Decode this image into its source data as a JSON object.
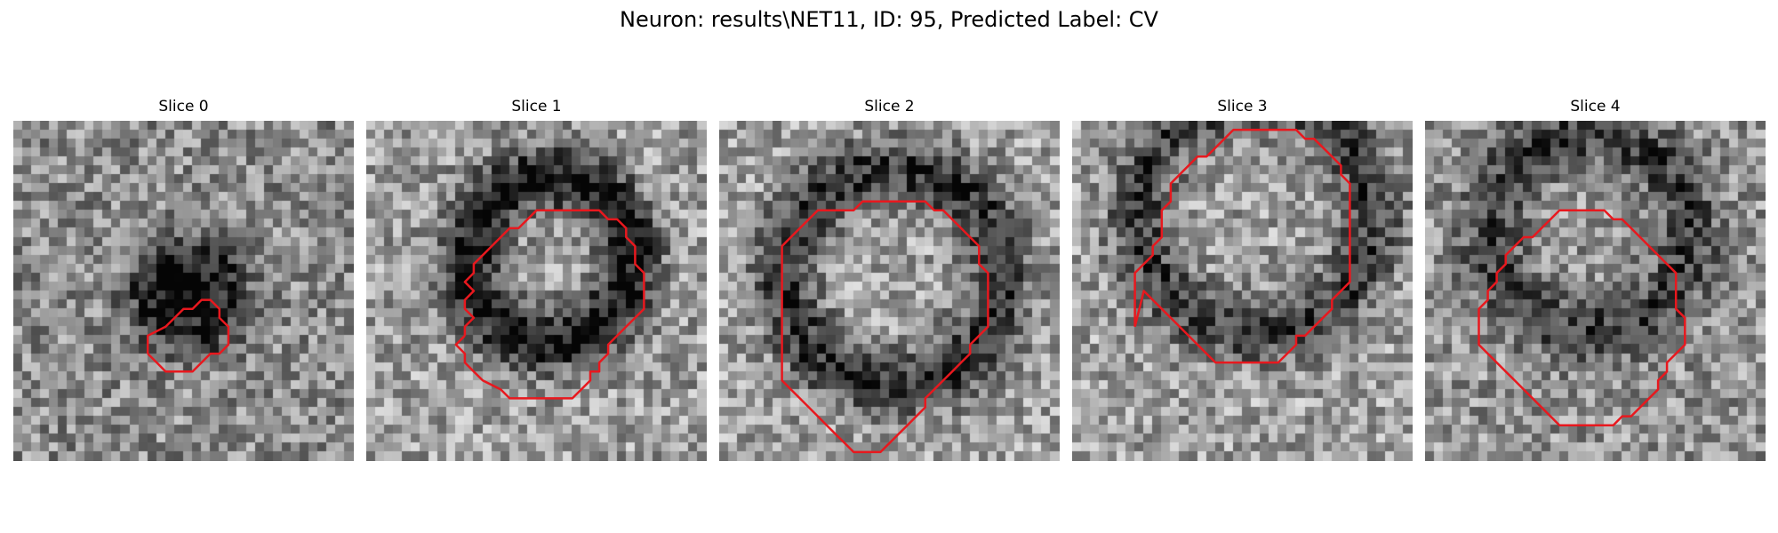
{
  "figure": {
    "title": "Neuron: results\\NET11, ID: 95, Predicted Label: CV"
  },
  "colors": {
    "contour": "#e8181e",
    "background": "#ffffff"
  },
  "panels": [
    {
      "title": "Slice 0",
      "contour": [
        [
          15,
          20
        ],
        [
          15,
          18
        ],
        [
          17,
          17
        ],
        [
          18,
          16
        ],
        [
          19,
          15
        ],
        [
          20,
          15
        ],
        [
          21,
          14
        ],
        [
          22,
          14
        ],
        [
          23,
          15
        ],
        [
          23,
          16
        ],
        [
          24,
          17
        ],
        [
          24,
          19
        ],
        [
          23,
          20
        ],
        [
          22,
          20
        ],
        [
          21,
          21
        ],
        [
          20,
          22
        ],
        [
          18,
          22
        ],
        [
          17,
          22
        ],
        [
          16,
          21
        ],
        [
          15,
          20
        ]
      ]
    },
    {
      "title": "Slice 1",
      "contour": [
        [
          11,
          18
        ],
        [
          11,
          17
        ],
        [
          12,
          16
        ],
        [
          11,
          15
        ],
        [
          11,
          14
        ],
        [
          12,
          13
        ],
        [
          11,
          12
        ],
        [
          12,
          11
        ],
        [
          12,
          10
        ],
        [
          13,
          9
        ],
        [
          14,
          8
        ],
        [
          15,
          7
        ],
        [
          16,
          6
        ],
        [
          17,
          6
        ],
        [
          18,
          5
        ],
        [
          19,
          4
        ],
        [
          20,
          4
        ],
        [
          22,
          4
        ],
        [
          23,
          4
        ],
        [
          24,
          4
        ],
        [
          25,
          4
        ],
        [
          26,
          4
        ],
        [
          27,
          5
        ],
        [
          28,
          5
        ],
        [
          29,
          6
        ],
        [
          29,
          7
        ],
        [
          30,
          8
        ],
        [
          30,
          10
        ],
        [
          31,
          11
        ],
        [
          31,
          13
        ],
        [
          31,
          15
        ],
        [
          30,
          16
        ],
        [
          29,
          17
        ],
        [
          28,
          18
        ],
        [
          27,
          19
        ],
        [
          27,
          20
        ],
        [
          26,
          21
        ],
        [
          26,
          22
        ],
        [
          25,
          22
        ],
        [
          25,
          23
        ],
        [
          24,
          24
        ],
        [
          23,
          25
        ],
        [
          21,
          25
        ],
        [
          20,
          25
        ],
        [
          18,
          25
        ],
        [
          17,
          25
        ],
        [
          16,
          25
        ],
        [
          15,
          24
        ],
        [
          13,
          23
        ],
        [
          12,
          22
        ],
        [
          11,
          21
        ],
        [
          11,
          20
        ],
        [
          10,
          19
        ],
        [
          11,
          18
        ]
      ]
    },
    {
      "title": "Slice 2",
      "contour": [
        [
          7,
          16
        ],
        [
          7,
          14
        ],
        [
          7,
          12
        ],
        [
          7,
          10
        ],
        [
          7,
          8
        ],
        [
          8,
          7
        ],
        [
          9,
          6
        ],
        [
          10,
          5
        ],
        [
          11,
          4
        ],
        [
          13,
          4
        ],
        [
          15,
          4
        ],
        [
          16,
          3
        ],
        [
          18,
          3
        ],
        [
          20,
          3
        ],
        [
          22,
          3
        ],
        [
          23,
          3
        ],
        [
          24,
          4
        ],
        [
          25,
          4
        ],
        [
          26,
          5
        ],
        [
          27,
          6
        ],
        [
          28,
          7
        ],
        [
          29,
          8
        ],
        [
          29,
          10
        ],
        [
          30,
          11
        ],
        [
          30,
          13
        ],
        [
          30,
          15
        ],
        [
          30,
          17
        ],
        [
          29,
          18
        ],
        [
          28,
          19
        ],
        [
          28,
          20
        ],
        [
          27,
          21
        ],
        [
          26,
          22
        ],
        [
          25,
          23
        ],
        [
          24,
          24
        ],
        [
          23,
          25
        ],
        [
          23,
          26
        ],
        [
          22,
          27
        ],
        [
          21,
          28
        ],
        [
          20,
          29
        ],
        [
          19,
          30
        ],
        [
          18,
          31
        ],
        [
          16,
          31
        ],
        [
          15,
          31
        ],
        [
          14,
          30
        ],
        [
          13,
          29
        ],
        [
          12,
          28
        ],
        [
          11,
          27
        ],
        [
          10,
          26
        ],
        [
          9,
          25
        ],
        [
          8,
          24
        ],
        [
          7,
          23
        ],
        [
          7,
          21
        ],
        [
          7,
          19
        ],
        [
          7,
          16
        ]
      ]
    },
    {
      "title": "Slice 3",
      "contour": [
        [
          7,
          19
        ],
        [
          7,
          17
        ],
        [
          7,
          15
        ],
        [
          7,
          13
        ],
        [
          8,
          12
        ],
        [
          9,
          11
        ],
        [
          9,
          10
        ],
        [
          10,
          9
        ],
        [
          10,
          8
        ],
        [
          10,
          6
        ],
        [
          11,
          5
        ],
        [
          11,
          3
        ],
        [
          12,
          2
        ],
        [
          13,
          1
        ],
        [
          14,
          0
        ],
        [
          15,
          0
        ],
        [
          16,
          -1
        ],
        [
          17,
          -2
        ],
        [
          18,
          -3
        ],
        [
          19,
          -3
        ],
        [
          20,
          -3
        ],
        [
          22,
          -3
        ],
        [
          23,
          -3
        ],
        [
          24,
          -3
        ],
        [
          25,
          -3
        ],
        [
          26,
          -2
        ],
        [
          27,
          -2
        ],
        [
          28,
          -1
        ],
        [
          29,
          0
        ],
        [
          30,
          1
        ],
        [
          30,
          2
        ],
        [
          31,
          3
        ],
        [
          31,
          4
        ],
        [
          31,
          6
        ],
        [
          31,
          8
        ],
        [
          31,
          10
        ],
        [
          31,
          12
        ],
        [
          31,
          14
        ],
        [
          30,
          15
        ],
        [
          29,
          16
        ],
        [
          29,
          17
        ],
        [
          28,
          18
        ],
        [
          27,
          19
        ],
        [
          26,
          20
        ],
        [
          25,
          20
        ],
        [
          25,
          21
        ],
        [
          24,
          22
        ],
        [
          23,
          23
        ],
        [
          22,
          23
        ],
        [
          20,
          23
        ],
        [
          18,
          23
        ],
        [
          17,
          23
        ],
        [
          16,
          23
        ],
        [
          15,
          22
        ],
        [
          14,
          21
        ],
        [
          13,
          20
        ],
        [
          12,
          19
        ],
        [
          11,
          18
        ],
        [
          10,
          17
        ],
        [
          9,
          16
        ],
        [
          8,
          15
        ],
        [
          7,
          19
        ]
      ]
    },
    {
      "title": "Slice 4",
      "contour": [
        [
          6,
          14
        ],
        [
          6,
          12
        ],
        [
          6,
          11
        ],
        [
          7,
          10
        ],
        [
          7,
          9
        ],
        [
          8,
          8
        ],
        [
          8,
          7
        ],
        [
          9,
          6
        ],
        [
          9,
          5
        ],
        [
          10,
          4
        ],
        [
          11,
          3
        ],
        [
          12,
          3
        ],
        [
          13,
          2
        ],
        [
          14,
          1
        ],
        [
          15,
          0
        ],
        [
          16,
          0
        ],
        [
          18,
          0
        ],
        [
          19,
          0
        ],
        [
          20,
          0
        ],
        [
          21,
          1
        ],
        [
          22,
          1
        ],
        [
          23,
          2
        ],
        [
          24,
          3
        ],
        [
          25,
          4
        ],
        [
          26,
          5
        ],
        [
          27,
          6
        ],
        [
          28,
          7
        ],
        [
          28,
          8
        ],
        [
          28,
          10
        ],
        [
          28,
          11
        ],
        [
          29,
          12
        ],
        [
          29,
          14
        ],
        [
          29,
          15
        ],
        [
          28,
          16
        ],
        [
          27,
          17
        ],
        [
          27,
          18
        ],
        [
          26,
          19
        ],
        [
          26,
          20
        ],
        [
          25,
          21
        ],
        [
          24,
          22
        ],
        [
          23,
          23
        ],
        [
          22,
          23
        ],
        [
          21,
          24
        ],
        [
          19,
          24
        ],
        [
          17,
          24
        ],
        [
          16,
          24
        ],
        [
          15,
          24
        ],
        [
          14,
          23
        ],
        [
          13,
          22
        ],
        [
          12,
          21
        ],
        [
          11,
          20
        ],
        [
          10,
          19
        ],
        [
          9,
          18
        ],
        [
          8,
          17
        ],
        [
          7,
          16
        ],
        [
          6,
          15
        ],
        [
          6,
          14
        ]
      ]
    }
  ]
}
